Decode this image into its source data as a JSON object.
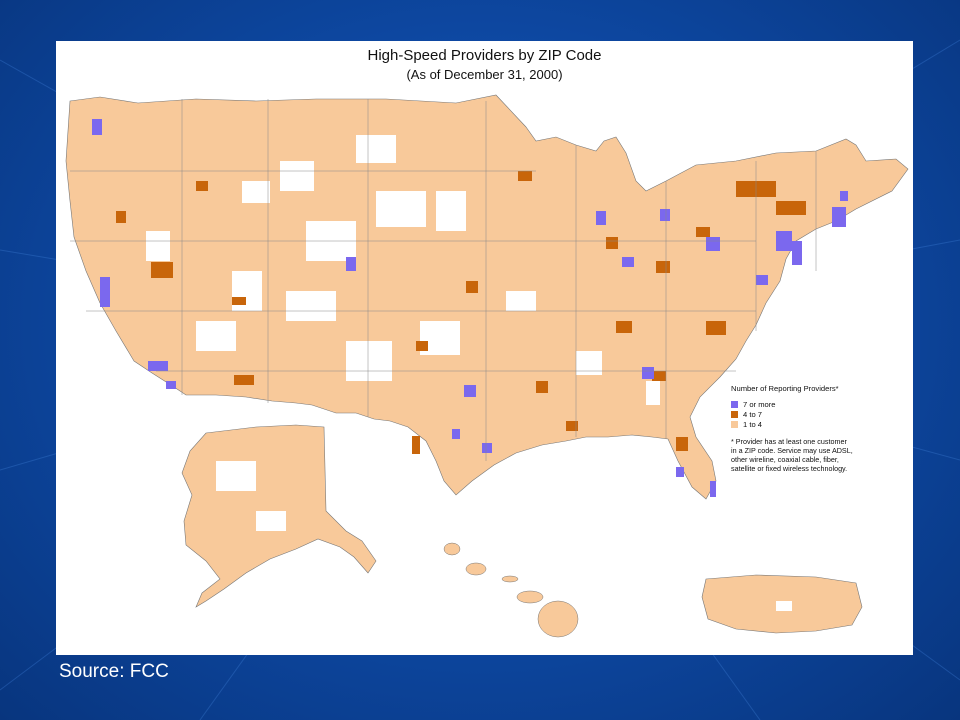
{
  "slide": {
    "source": "Source:  FCC",
    "background": "#0e4aa6"
  },
  "map": {
    "title": "High-Speed Providers by ZIP Code",
    "subtitle": "(As of December 31, 2000)",
    "regions_shown": [
      "Contiguous United States",
      "Alaska",
      "Hawaii",
      "Puerto Rico"
    ],
    "legend": {
      "title": "Number of Reporting Providers*",
      "items": [
        {
          "label": "7 or more",
          "color": "#7b68ee"
        },
        {
          "label": "4 to 7",
          "color": "#c8650a"
        },
        {
          "label": "1 to 4",
          "color": "#f8c99a"
        }
      ],
      "note_lines": [
        "* Provider has at least one customer",
        "in a ZIP code.  Service may use ADSL,",
        "other wireline, coaxial cable, fiber,",
        "satellite or fixed wireless technology."
      ]
    },
    "colors": {
      "land": "#f8c99a",
      "no_provider": "#ffffff",
      "mid": "#c8650a",
      "high": "#7b68ee",
      "border": "#666666"
    }
  }
}
